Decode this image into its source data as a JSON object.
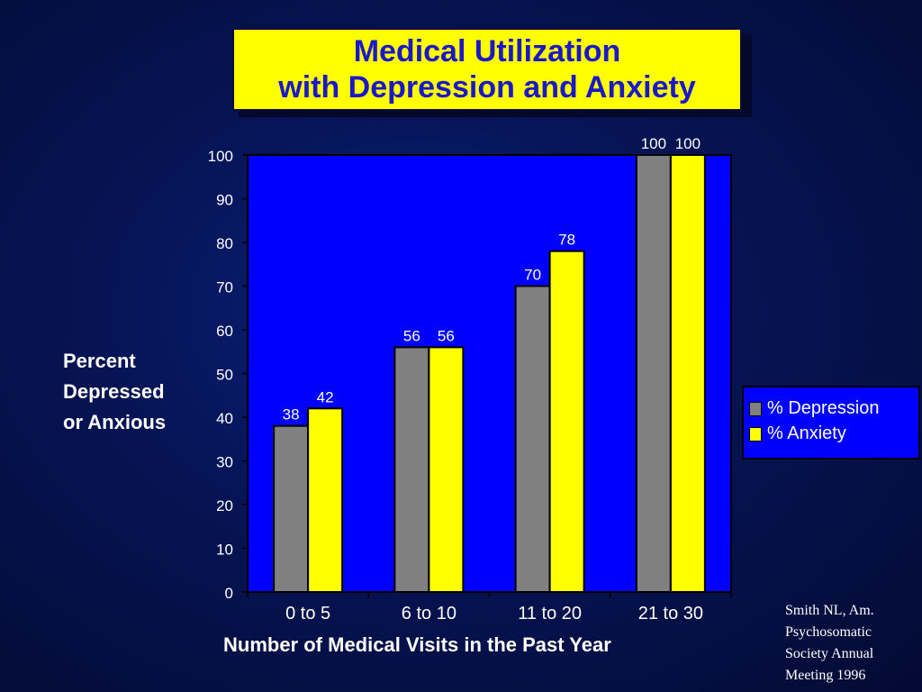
{
  "title": {
    "line1": "Medical Utilization",
    "line2": "with Depression and Anxiety"
  },
  "colors": {
    "depression": "#808080",
    "anxiety": "#ffff00",
    "plot_bg": "#0000ff",
    "title_text": "#1a18c8"
  },
  "legend": {
    "items": [
      "% Depression",
      "% Anxiety"
    ]
  },
  "citation": [
    "Smith NL, Am.",
    "Psychosomatic",
    "Society Annual",
    "Meeting 1996"
  ],
  "chart_data": {
    "type": "bar",
    "title": "Medical Utilization with Depression and Anxiety",
    "xlabel": "Number of Medical Visits in the Past Year",
    "ylabel": [
      "Percent",
      "Depressed",
      "or Anxious"
    ],
    "categories": [
      "0 to 5",
      "6 to 10",
      "11 to 20",
      "21 to 30"
    ],
    "series": [
      {
        "name": "% Depression",
        "values": [
          38,
          56,
          70,
          100
        ]
      },
      {
        "name": "% Anxiety",
        "values": [
          42,
          56,
          78,
          100
        ]
      }
    ],
    "ylim": [
      0,
      100
    ],
    "yticks": [
      0,
      10,
      20,
      30,
      40,
      50,
      60,
      70,
      80,
      90,
      100
    ],
    "data_labels": true,
    "legend_position": "right",
    "grid": false
  }
}
